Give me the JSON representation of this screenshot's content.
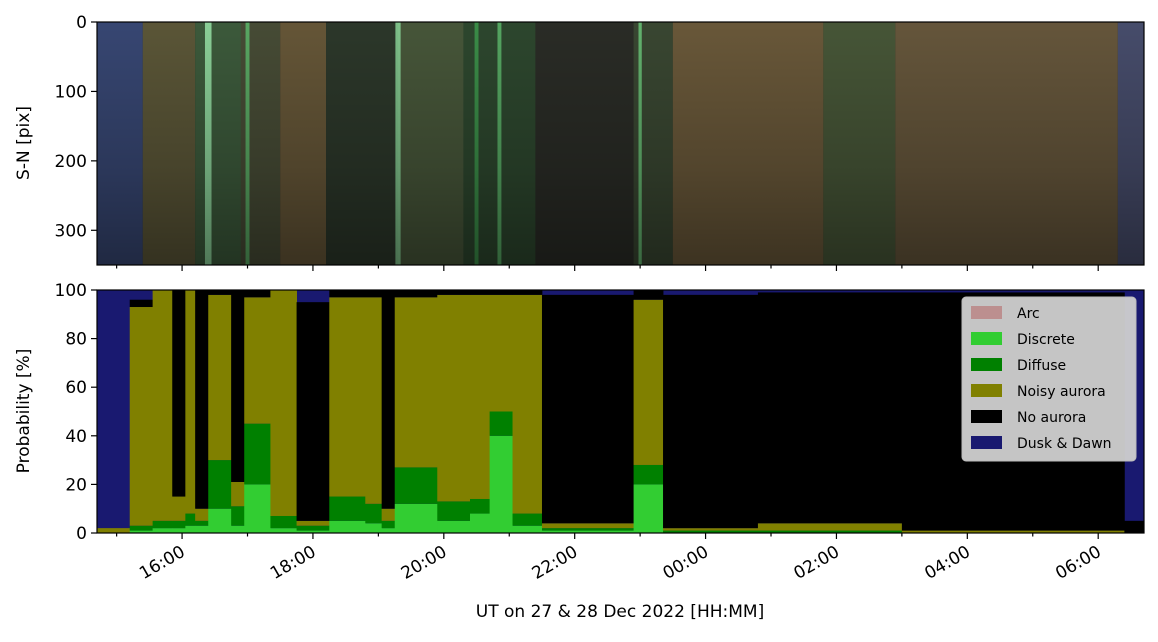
{
  "chart_data": [
    {
      "type": "heatmap",
      "panel": "keogram",
      "ylabel": "S-N [pix]",
      "y_ticks": [
        "0",
        "100",
        "200",
        "300"
      ],
      "ylim": [
        350,
        0
      ],
      "bands": [
        {
          "start_h": 14.7,
          "end_h": 15.4,
          "color": "#3a4a78"
        },
        {
          "start_h": 15.4,
          "end_h": 16.2,
          "color": "#5f5a3a"
        },
        {
          "start_h": 16.2,
          "end_h": 16.9,
          "color": "#3f5e3e"
        },
        {
          "start_h": 16.9,
          "end_h": 17.5,
          "color": "#4a4f38"
        },
        {
          "start_h": 17.5,
          "end_h": 18.2,
          "color": "#6a5a3a"
        },
        {
          "start_h": 18.2,
          "end_h": 19.3,
          "color": "#2e3a2c"
        },
        {
          "start_h": 19.3,
          "end_h": 20.3,
          "color": "#4a5a3c"
        },
        {
          "start_h": 20.3,
          "end_h": 21.4,
          "color": "#2f4a30"
        },
        {
          "start_h": 21.4,
          "end_h": 22.9,
          "color": "#2c2e28"
        },
        {
          "start_h": 22.9,
          "end_h": 23.5,
          "color": "#3c4a34"
        },
        {
          "start_h": 23.5,
          "end_h": 25.8,
          "color": "#6e5c3c"
        },
        {
          "start_h": 25.8,
          "end_h": 26.9,
          "color": "#4a5a3a"
        },
        {
          "start_h": 26.9,
          "end_h": 30.3,
          "color": "#6a5a3e"
        },
        {
          "start_h": 30.3,
          "end_h": 30.7,
          "color": "#4a5070"
        }
      ],
      "streaks": [
        {
          "t_h": 16.4,
          "color": "#a0f0b0",
          "width": 0.1
        },
        {
          "t_h": 17.0,
          "color": "#60c070",
          "width": 0.06
        },
        {
          "t_h": 19.3,
          "color": "#90e0a0",
          "width": 0.08
        },
        {
          "t_h": 20.5,
          "color": "#40a050",
          "width": 0.06
        },
        {
          "t_h": 20.85,
          "color": "#60c070",
          "width": 0.06
        },
        {
          "t_h": 23.0,
          "color": "#70d080",
          "width": 0.05
        }
      ]
    },
    {
      "type": "area",
      "panel": "probability",
      "ylabel": "Probability [%]",
      "xlabel": "UT on 27 & 28 Dec 2022 [HH:MM]",
      "xlim": [
        14.7,
        30.7
      ],
      "ylim": [
        0,
        100
      ],
      "y_ticks": [
        "0",
        "20",
        "40",
        "60",
        "80",
        "100"
      ],
      "x_ticks": [
        {
          "t_h": 16,
          "label": "16:00"
        },
        {
          "t_h": 18,
          "label": "18:00"
        },
        {
          "t_h": 20,
          "label": "20:00"
        },
        {
          "t_h": 22,
          "label": "22:00"
        },
        {
          "t_h": 24,
          "label": "00:00"
        },
        {
          "t_h": 26,
          "label": "02:00"
        },
        {
          "t_h": 28,
          "label": "04:00"
        },
        {
          "t_h": 30,
          "label": "06:00"
        }
      ],
      "stack_order": [
        "Arc",
        "Discrete",
        "Diffuse",
        "Noisy aurora",
        "No aurora",
        "Dusk & Dawn"
      ],
      "series": [
        {
          "name": "Arc",
          "color": "#bc8f8f"
        },
        {
          "name": "Discrete",
          "color": "#32cd32"
        },
        {
          "name": "Diffuse",
          "color": "#008000"
        },
        {
          "name": "Noisy aurora",
          "color": "#808000"
        },
        {
          "name": "No aurora",
          "color": "#000000"
        },
        {
          "name": "Dusk & Dawn",
          "color": "#191970"
        }
      ],
      "segments": [
        {
          "start": 14.7,
          "end": 15.2,
          "Discrete": 0,
          "Diffuse": 0,
          "Noisy aurora": 2,
          "No aurora": 0
        },
        {
          "start": 15.2,
          "end": 15.55,
          "Discrete": 1,
          "Diffuse": 2,
          "Noisy aurora": 90,
          "No aurora": 3
        },
        {
          "start": 15.55,
          "end": 15.85,
          "Discrete": 2,
          "Diffuse": 3,
          "Noisy aurora": 95,
          "No aurora": 0
        },
        {
          "start": 15.85,
          "end": 16.05,
          "Discrete": 2,
          "Diffuse": 3,
          "Noisy aurora": 10,
          "No aurora": 85
        },
        {
          "start": 16.05,
          "end": 16.2,
          "Discrete": 3,
          "Diffuse": 5,
          "Noisy aurora": 92,
          "No aurora": 0
        },
        {
          "start": 16.2,
          "end": 16.4,
          "Discrete": 3,
          "Diffuse": 2,
          "Noisy aurora": 5,
          "No aurora": 90
        },
        {
          "start": 16.4,
          "end": 16.75,
          "Discrete": 10,
          "Diffuse": 20,
          "Noisy aurora": 68,
          "No aurora": 2
        },
        {
          "start": 16.75,
          "end": 16.95,
          "Discrete": 3,
          "Diffuse": 8,
          "Noisy aurora": 10,
          "No aurora": 79
        },
        {
          "start": 16.95,
          "end": 17.35,
          "Discrete": 20,
          "Diffuse": 25,
          "Noisy aurora": 52,
          "No aurora": 3
        },
        {
          "start": 17.35,
          "end": 17.75,
          "Discrete": 2,
          "Diffuse": 5,
          "Noisy aurora": 93,
          "No aurora": 0
        },
        {
          "start": 17.75,
          "end": 18.25,
          "Discrete": 1,
          "Diffuse": 2,
          "Noisy aurora": 2,
          "No aurora": 90
        },
        {
          "start": 18.25,
          "end": 18.8,
          "Discrete": 5,
          "Diffuse": 10,
          "Noisy aurora": 82,
          "No aurora": 3
        },
        {
          "start": 18.8,
          "end": 19.05,
          "Discrete": 4,
          "Diffuse": 8,
          "Noisy aurora": 85,
          "No aurora": 3
        },
        {
          "start": 19.05,
          "end": 19.25,
          "Discrete": 2,
          "Diffuse": 3,
          "Noisy aurora": 5,
          "No aurora": 90
        },
        {
          "start": 19.25,
          "end": 19.9,
          "Discrete": 12,
          "Diffuse": 15,
          "Noisy aurora": 70,
          "No aurora": 3
        },
        {
          "start": 19.9,
          "end": 20.4,
          "Discrete": 5,
          "Diffuse": 8,
          "Noisy aurora": 85,
          "No aurora": 2
        },
        {
          "start": 20.4,
          "end": 20.7,
          "Discrete": 8,
          "Diffuse": 6,
          "Noisy aurora": 84,
          "No aurora": 2
        },
        {
          "start": 20.7,
          "end": 21.05,
          "Discrete": 40,
          "Diffuse": 10,
          "Noisy aurora": 48,
          "No aurora": 2
        },
        {
          "start": 21.05,
          "end": 21.5,
          "Discrete": 3,
          "Diffuse": 5,
          "Noisy aurora": 90,
          "No aurora": 2
        },
        {
          "start": 21.5,
          "end": 22.9,
          "Discrete": 1,
          "Diffuse": 1,
          "Noisy aurora": 2,
          "No aurora": 94
        },
        {
          "start": 22.9,
          "end": 23.35,
          "Discrete": 20,
          "Diffuse": 8,
          "Noisy aurora": 68,
          "No aurora": 4
        },
        {
          "start": 23.35,
          "end": 24.8,
          "Discrete": 0,
          "Diffuse": 1,
          "Noisy aurora": 1,
          "No aurora": 96
        },
        {
          "start": 24.8,
          "end": 27.0,
          "Discrete": 0,
          "Diffuse": 1,
          "Noisy aurora": 3,
          "No aurora": 95
        },
        {
          "start": 27.0,
          "end": 30.4,
          "Discrete": 0,
          "Diffuse": 0,
          "Noisy aurora": 1,
          "No aurora": 98
        },
        {
          "start": 30.4,
          "end": 30.7,
          "Discrete": 0,
          "Diffuse": 0,
          "Noisy aurora": 0,
          "No aurora": 5
        }
      ],
      "legend_position": "upper right"
    }
  ]
}
